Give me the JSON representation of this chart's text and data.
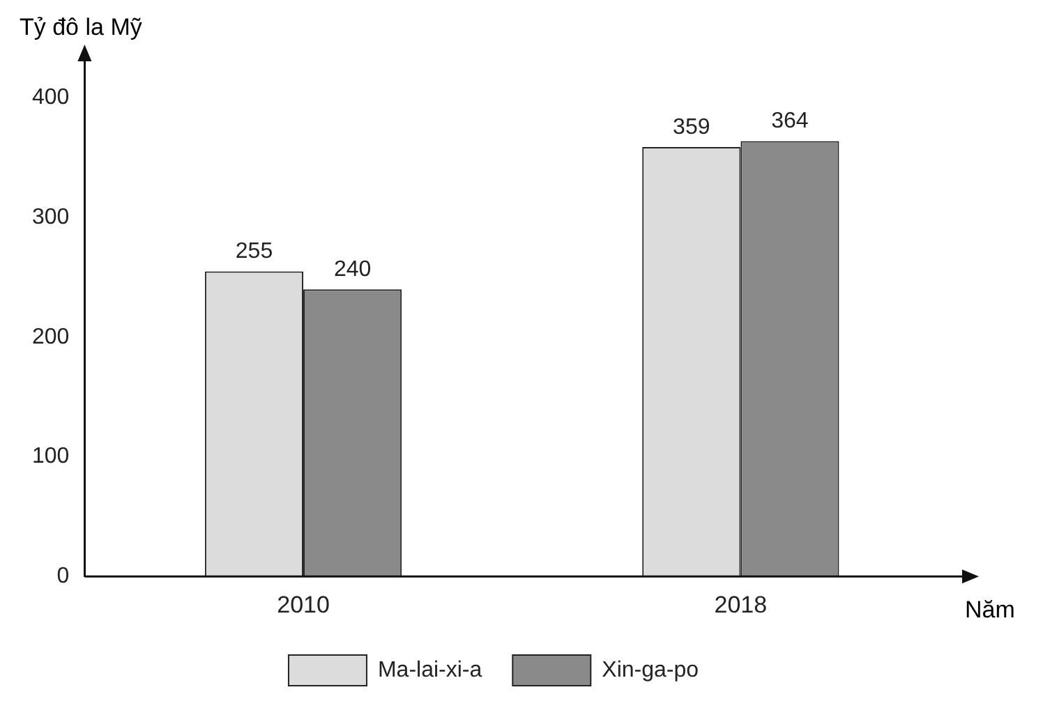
{
  "chart_data": {
    "type": "bar",
    "ylabel": "Tỷ đô la Mỹ",
    "xlabel": "Năm",
    "categories": [
      "2010",
      "2018"
    ],
    "series": [
      {
        "name": "Ma-lai-xi-a",
        "color": "#dcdcdc",
        "values": [
          255,
          359
        ]
      },
      {
        "name": "Xin-ga-po",
        "color": "#8a8a8a",
        "values": [
          240,
          364
        ]
      }
    ],
    "ylim": [
      0,
      440
    ],
    "yticks": [
      0,
      100,
      200,
      300,
      400
    ],
    "grid": false,
    "legend": "bottom",
    "data_labels": true
  }
}
